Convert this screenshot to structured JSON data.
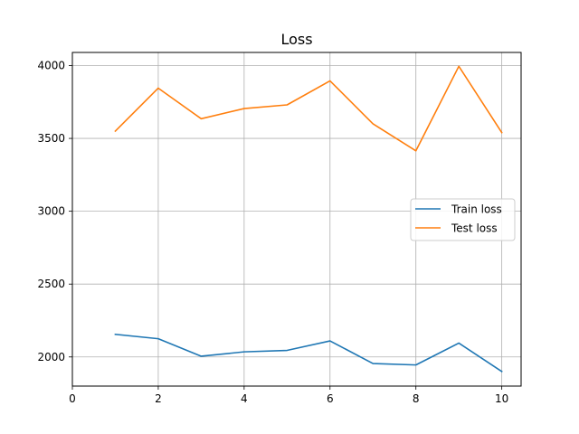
{
  "chart_data": {
    "type": "line",
    "title": "Loss",
    "xlabel": "",
    "ylabel": "",
    "xlim": [
      0,
      10.45
    ],
    "ylim": [
      1800,
      4090
    ],
    "x_ticks": [
      "0",
      "2",
      "4",
      "6",
      "8",
      "10"
    ],
    "y_ticks": [
      "2000",
      "2500",
      "3000",
      "3500",
      "4000"
    ],
    "grid": true,
    "legend_position": "center-right",
    "x": [
      1,
      2,
      3,
      4,
      5,
      6,
      7,
      8,
      9,
      10
    ],
    "series": [
      {
        "name": "Train loss",
        "color": "#1f77b4",
        "values": [
          2155,
          2125,
          2005,
          2035,
          2045,
          2110,
          1955,
          1945,
          2095,
          1900
        ]
      },
      {
        "name": "Test loss",
        "color": "#ff7f0e",
        "values": [
          3550,
          3845,
          3635,
          3705,
          3730,
          3895,
          3600,
          3415,
          3995,
          3540
        ]
      }
    ]
  }
}
